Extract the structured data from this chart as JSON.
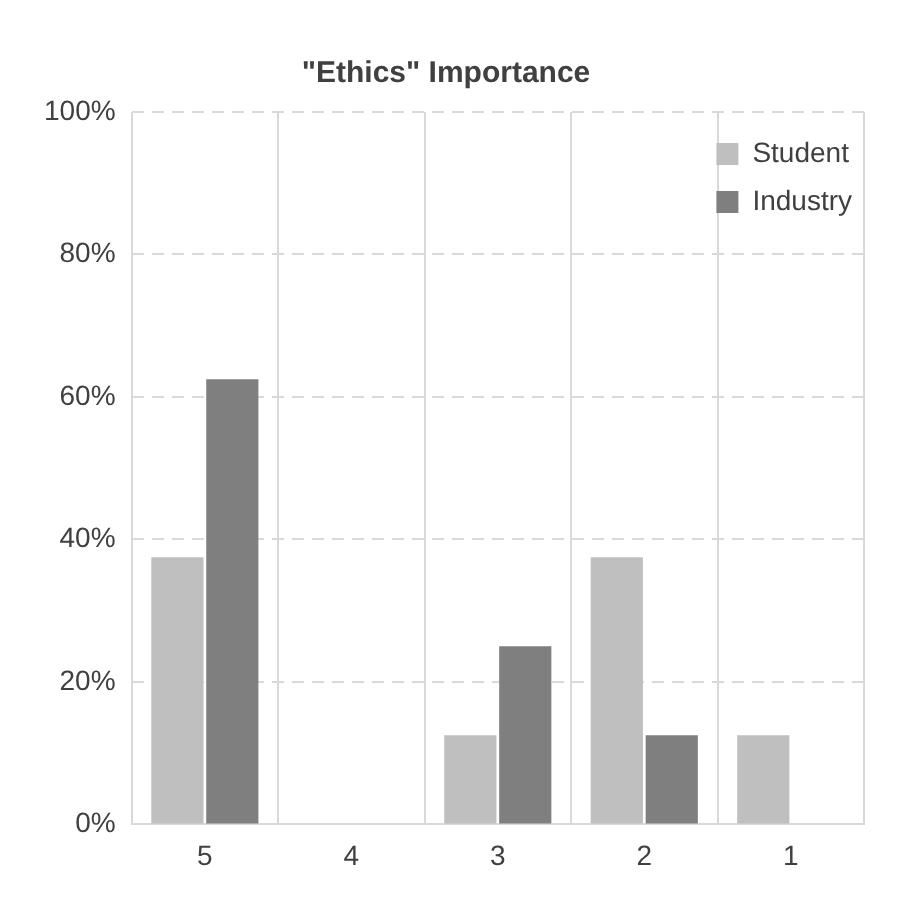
{
  "chart_data": {
    "type": "bar",
    "title": "\"Ethics\" Importance",
    "categories": [
      "5",
      "4",
      "3",
      "2",
      "1"
    ],
    "series": [
      {
        "name": "Student",
        "color": "#bfbfbf",
        "values": [
          37.5,
          0,
          12.5,
          37.5,
          12.5
        ]
      },
      {
        "name": "Industry",
        "color": "#7f7f7f",
        "values": [
          62.5,
          0,
          25,
          12.5,
          0
        ]
      }
    ],
    "ylim": [
      0,
      100
    ],
    "yticks": [
      {
        "value": 0,
        "label": "0%"
      },
      {
        "value": 20,
        "label": "20%"
      },
      {
        "value": 40,
        "label": "40%"
      },
      {
        "value": 60,
        "label": "60%"
      },
      {
        "value": 80,
        "label": "80%"
      },
      {
        "value": 100,
        "label": "100%"
      }
    ],
    "grid": true,
    "legend": "top right"
  }
}
